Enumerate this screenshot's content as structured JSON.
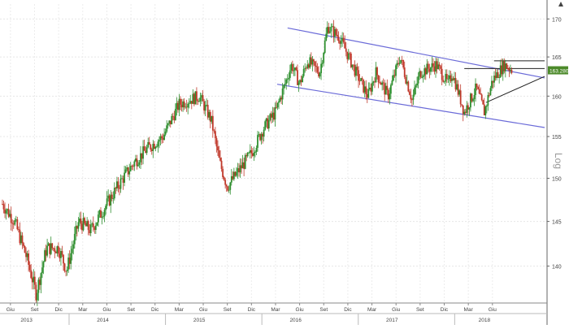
{
  "chart_data": {
    "type": "candlestick",
    "scale_label": "Log",
    "last_price_label": "163.2800",
    "ylim": [
      136,
      172
    ],
    "y_ticks": [
      140,
      145,
      150,
      155,
      160,
      165,
      170
    ],
    "month_ticks": [
      {
        "label": "Giu",
        "t": 0
      },
      {
        "label": "Set",
        "t": 3
      },
      {
        "label": "Dic",
        "t": 6
      },
      {
        "label": "Mar",
        "t": 9
      },
      {
        "label": "Giu",
        "t": 12
      },
      {
        "label": "Set",
        "t": 15
      },
      {
        "label": "Dic",
        "t": 18
      },
      {
        "label": "Mar",
        "t": 21
      },
      {
        "label": "Giu",
        "t": 24
      },
      {
        "label": "Set",
        "t": 27
      },
      {
        "label": "Dic",
        "t": 30
      },
      {
        "label": "Mar",
        "t": 33
      },
      {
        "label": "Giu",
        "t": 36
      },
      {
        "label": "Set",
        "t": 39
      },
      {
        "label": "Dic",
        "t": 42
      },
      {
        "label": "Mar",
        "t": 45
      },
      {
        "label": "Giu",
        "t": 48
      },
      {
        "label": "Set",
        "t": 51
      },
      {
        "label": "Dic",
        "t": 54
      },
      {
        "label": "Mar",
        "t": 57
      },
      {
        "label": "Giu",
        "t": 60
      }
    ],
    "year_labels": [
      {
        "label": "2013",
        "t": 2
      },
      {
        "label": "2014",
        "t": 11.5
      },
      {
        "label": "2015",
        "t": 23.5
      },
      {
        "label": "2016",
        "t": 35.5
      },
      {
        "label": "2017",
        "t": 47.5
      },
      {
        "label": "2018",
        "t": 59
      }
    ],
    "path": [
      [
        -1,
        147
      ],
      [
        0.5,
        145
      ],
      [
        2,
        141
      ],
      [
        3.2,
        137
      ],
      [
        4.5,
        142
      ],
      [
        6,
        142
      ],
      [
        7,
        139.5
      ],
      [
        8.5,
        145
      ],
      [
        10,
        144
      ],
      [
        12,
        147
      ],
      [
        14,
        150
      ],
      [
        15.5,
        152
      ],
      [
        17,
        153.5
      ],
      [
        19,
        155
      ],
      [
        21,
        159
      ],
      [
        23.5,
        160
      ],
      [
        25,
        157
      ],
      [
        26,
        152
      ],
      [
        27,
        149
      ],
      [
        28.5,
        151
      ],
      [
        30,
        153
      ],
      [
        31.5,
        156
      ],
      [
        33,
        158
      ],
      [
        35,
        164
      ],
      [
        36,
        161.5
      ],
      [
        37,
        164.5
      ],
      [
        38.5,
        163
      ],
      [
        39.5,
        169
      ],
      [
        41,
        167.5
      ],
      [
        43,
        163
      ],
      [
        44.5,
        160
      ],
      [
        45.5,
        163
      ],
      [
        47,
        160
      ],
      [
        48.5,
        165
      ],
      [
        50,
        159.5
      ],
      [
        51,
        163
      ],
      [
        53,
        164
      ],
      [
        54.5,
        161.5
      ],
      [
        55,
        163
      ],
      [
        56.5,
        158
      ],
      [
        58,
        161
      ],
      [
        59,
        158
      ],
      [
        60,
        162
      ],
      [
        61.5,
        164
      ],
      [
        62.5,
        163.3
      ]
    ],
    "trendlines": [
      {
        "from": [
          34.5,
          168.8
        ],
        "to": [
          66.5,
          162.3
        ]
      },
      {
        "from": [
          33.2,
          161.5
        ],
        "to": [
          66.5,
          156.1
        ]
      },
      {
        "from": [
          56.5,
          163.5
        ],
        "to": [
          66.5,
          163.5
        ]
      },
      {
        "from": [
          60.2,
          164.5
        ],
        "to": [
          66.5,
          164.5
        ]
      },
      {
        "from": [
          59.2,
          159.2
        ],
        "to": [
          66.5,
          162.5
        ]
      }
    ]
  }
}
